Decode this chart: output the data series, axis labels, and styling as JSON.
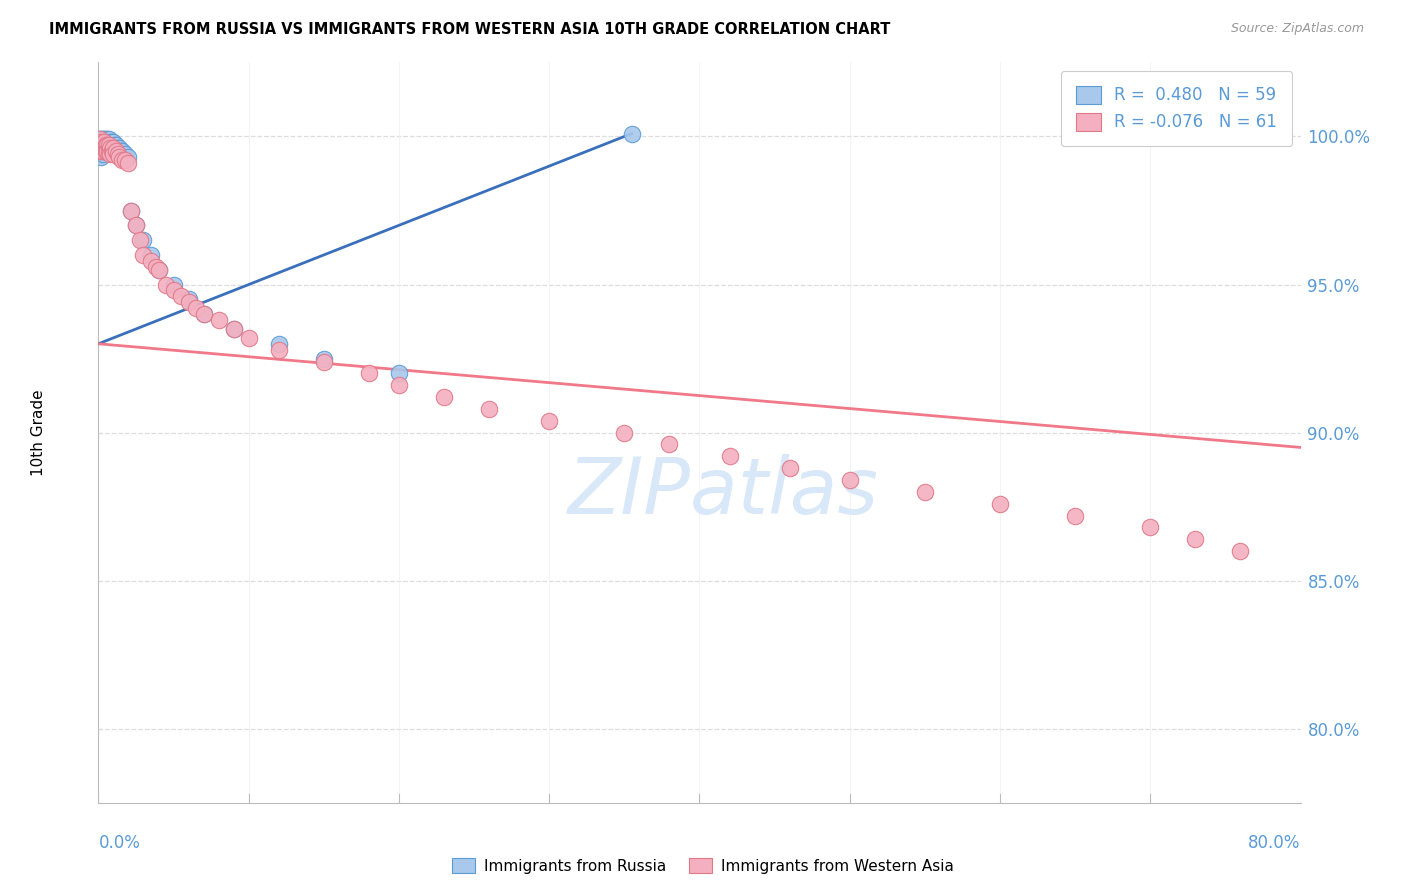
{
  "title": "IMMIGRANTS FROM RUSSIA VS IMMIGRANTS FROM WESTERN ASIA 10TH GRADE CORRELATION CHART",
  "source": "Source: ZipAtlas.com",
  "ylabel": "10th Grade",
  "blue_color": "#A8C8EC",
  "blue_edge_color": "#5B9BD5",
  "pink_color": "#F4B0C0",
  "pink_edge_color": "#E07888",
  "blue_line_color": "#3A70BB",
  "pink_line_color": "#F07888",
  "right_axis_color": "#5B9BD5",
  "xlim": [
    0.0,
    0.8
  ],
  "ylim": [
    0.775,
    1.025
  ],
  "yticks": [
    0.8,
    0.85,
    0.9,
    0.95,
    1.0
  ],
  "ytick_labels": [
    "80.0%",
    "85.0%",
    "90.0%",
    "95.0%",
    "100.0%"
  ],
  "xtick_left_label": "0.0%",
  "xtick_right_label": "80.0%",
  "legend_labels": [
    "R =  0.480   N = 59",
    "R = -0.076   N = 61"
  ],
  "watermark_text": "ZIPatlas",
  "bottom_legend_label1": "Immigrants from Russia",
  "bottom_legend_label2": "Immigrants from Western Asia",
  "blue_trend_x": [
    0.0,
    0.355
  ],
  "blue_trend_y": [
    0.93,
    1.001
  ],
  "pink_trend_x": [
    0.0,
    0.8
  ],
  "pink_trend_y": [
    0.93,
    0.895
  ],
  "blue_x": [
    0.001,
    0.001,
    0.001,
    0.001,
    0.001,
    0.002,
    0.002,
    0.002,
    0.002,
    0.002,
    0.002,
    0.002,
    0.003,
    0.003,
    0.003,
    0.003,
    0.003,
    0.003,
    0.004,
    0.004,
    0.004,
    0.004,
    0.005,
    0.005,
    0.005,
    0.005,
    0.006,
    0.006,
    0.006,
    0.007,
    0.007,
    0.007,
    0.008,
    0.008,
    0.009,
    0.009,
    0.01,
    0.01,
    0.011,
    0.012,
    0.013,
    0.014,
    0.015,
    0.016,
    0.018,
    0.02,
    0.022,
    0.025,
    0.03,
    0.035,
    0.04,
    0.05,
    0.06,
    0.07,
    0.09,
    0.12,
    0.15,
    0.2,
    0.355
  ],
  "blue_y": [
    0.999,
    0.998,
    0.997,
    0.996,
    0.994,
    0.999,
    0.998,
    0.997,
    0.996,
    0.995,
    0.994,
    0.993,
    0.999,
    0.998,
    0.997,
    0.996,
    0.995,
    0.994,
    0.999,
    0.998,
    0.997,
    0.995,
    0.999,
    0.998,
    0.997,
    0.995,
    0.999,
    0.998,
    0.996,
    0.999,
    0.997,
    0.995,
    0.998,
    0.996,
    0.998,
    0.996,
    0.998,
    0.996,
    0.997,
    0.997,
    0.996,
    0.996,
    0.995,
    0.995,
    0.994,
    0.993,
    0.975,
    0.97,
    0.965,
    0.96,
    0.955,
    0.95,
    0.945,
    0.94,
    0.935,
    0.93,
    0.925,
    0.92,
    1.001
  ],
  "pink_x": [
    0.001,
    0.001,
    0.001,
    0.002,
    0.002,
    0.003,
    0.003,
    0.004,
    0.004,
    0.005,
    0.005,
    0.006,
    0.006,
    0.007,
    0.007,
    0.008,
    0.008,
    0.009,
    0.01,
    0.01,
    0.012,
    0.013,
    0.014,
    0.016,
    0.018,
    0.02,
    0.022,
    0.025,
    0.028,
    0.03,
    0.035,
    0.038,
    0.04,
    0.045,
    0.05,
    0.055,
    0.06,
    0.065,
    0.07,
    0.08,
    0.09,
    0.1,
    0.12,
    0.15,
    0.18,
    0.2,
    0.23,
    0.26,
    0.3,
    0.35,
    0.38,
    0.42,
    0.46,
    0.5,
    0.55,
    0.6,
    0.65,
    0.7,
    0.73,
    0.76,
    0.75
  ],
  "pink_y": [
    0.999,
    0.997,
    0.995,
    0.998,
    0.996,
    0.997,
    0.995,
    0.998,
    0.996,
    0.997,
    0.995,
    0.997,
    0.995,
    0.997,
    0.995,
    0.996,
    0.994,
    0.995,
    0.996,
    0.994,
    0.995,
    0.994,
    0.993,
    0.992,
    0.992,
    0.991,
    0.975,
    0.97,
    0.965,
    0.96,
    0.958,
    0.956,
    0.955,
    0.95,
    0.948,
    0.946,
    0.944,
    0.942,
    0.94,
    0.938,
    0.935,
    0.932,
    0.928,
    0.924,
    0.92,
    0.916,
    0.912,
    0.908,
    0.904,
    0.9,
    0.896,
    0.892,
    0.888,
    0.884,
    0.88,
    0.876,
    0.872,
    0.868,
    0.864,
    0.86,
    1.001
  ]
}
